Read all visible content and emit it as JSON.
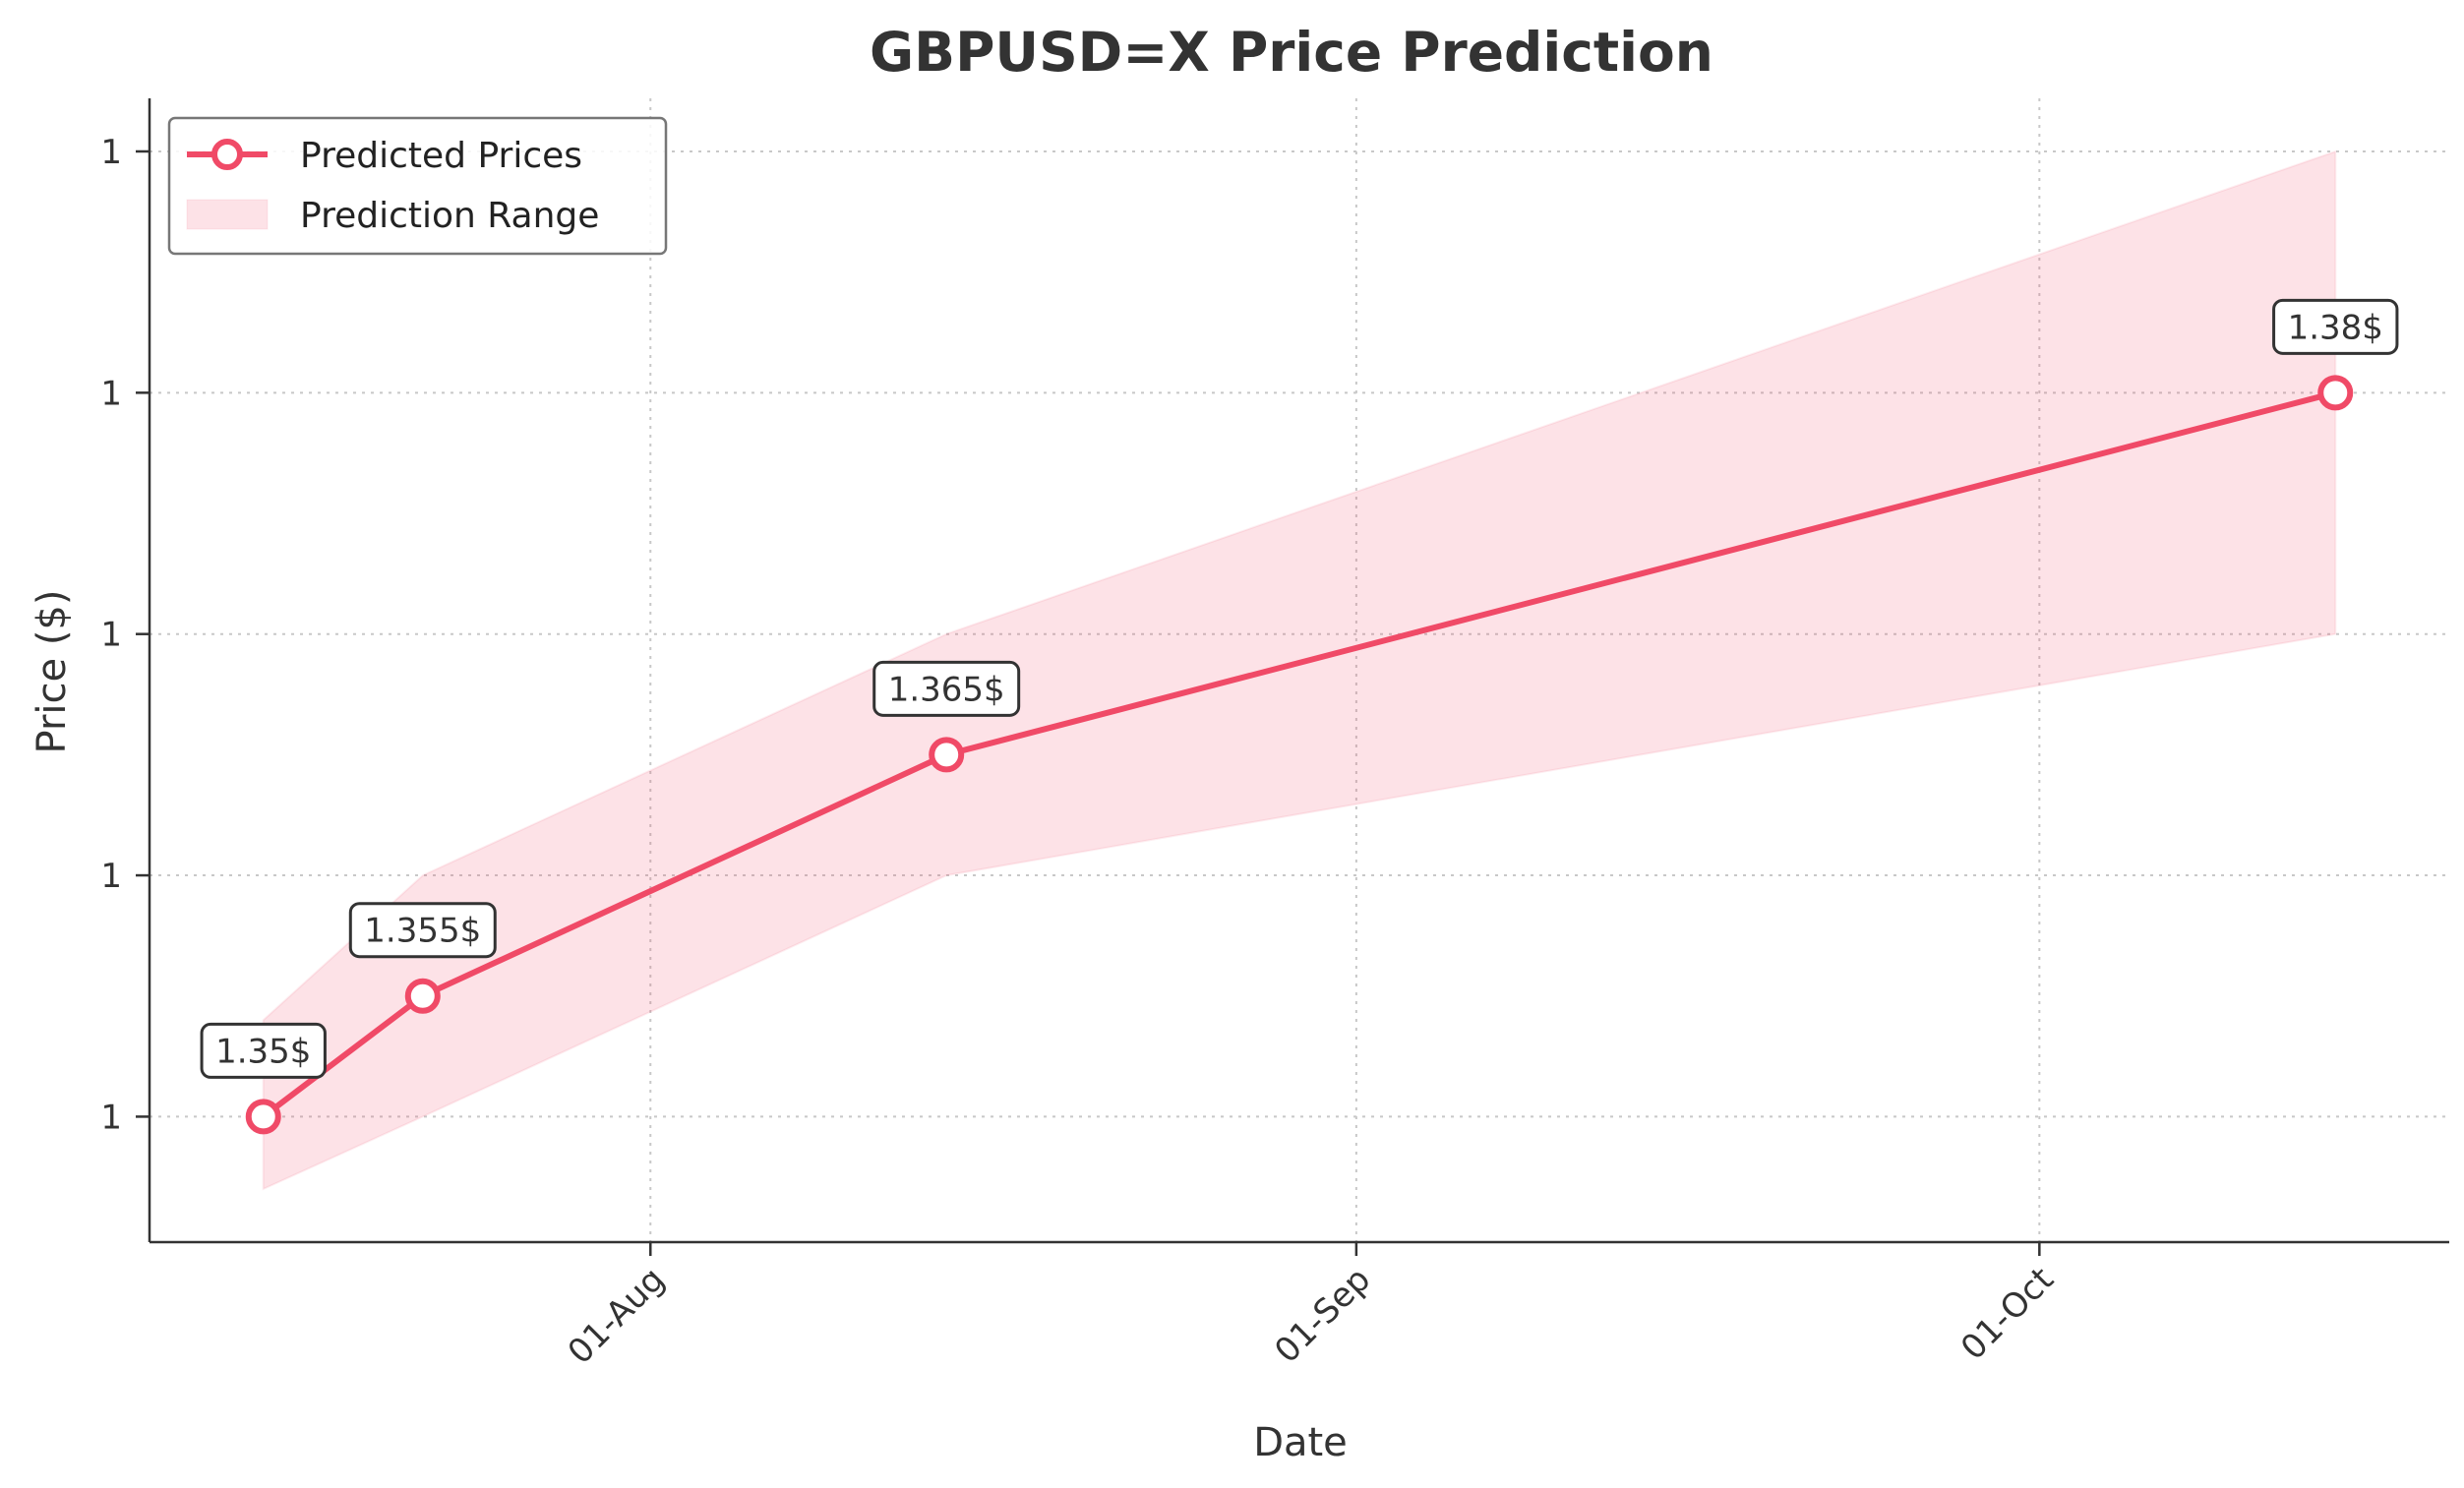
{
  "chart_data": {
    "type": "line",
    "title": "GBPUSD=X Price Prediction",
    "xlabel": "Date",
    "ylabel": "Price ($)",
    "x_tick_labels": [
      {
        "label": "01-Aug",
        "date": "2025-08-01"
      },
      {
        "label": "01-Sep",
        "date": "2025-09-01"
      },
      {
        "label": "01-Oct",
        "date": "2025-10-01"
      }
    ],
    "y_tick_labels": [
      {
        "label": "1",
        "value": 1.35
      },
      {
        "label": "1",
        "value": 1.36
      },
      {
        "label": "1",
        "value": 1.37
      },
      {
        "label": "1",
        "value": 1.38
      },
      {
        "label": "1",
        "value": 1.39
      }
    ],
    "xlim": [
      "2025-07-10",
      "2025-10-19"
    ],
    "ylim": [
      1.3448,
      1.3922
    ],
    "grid": true,
    "legend_position": "top-left",
    "series": [
      {
        "name": "Predicted Prices",
        "color": "#f04a67",
        "points": [
          {
            "x": "2025-07-15",
            "y": 1.35,
            "label": "1.35$"
          },
          {
            "x": "2025-07-22",
            "y": 1.355,
            "label": "1.355$"
          },
          {
            "x": "2025-08-14",
            "y": 1.365,
            "label": "1.365$"
          },
          {
            "x": "2025-10-14",
            "y": 1.38,
            "label": "1.38$"
          }
        ]
      }
    ],
    "range": {
      "name": "Prediction Range",
      "color": "#f04a67",
      "points": [
        {
          "x": "2025-07-15",
          "low": 1.347,
          "high": 1.354
        },
        {
          "x": "2025-07-22",
          "low": 1.35,
          "high": 1.36
        },
        {
          "x": "2025-08-14",
          "low": 1.36,
          "high": 1.37
        },
        {
          "x": "2025-10-14",
          "low": 1.37,
          "high": 1.39
        }
      ]
    }
  }
}
